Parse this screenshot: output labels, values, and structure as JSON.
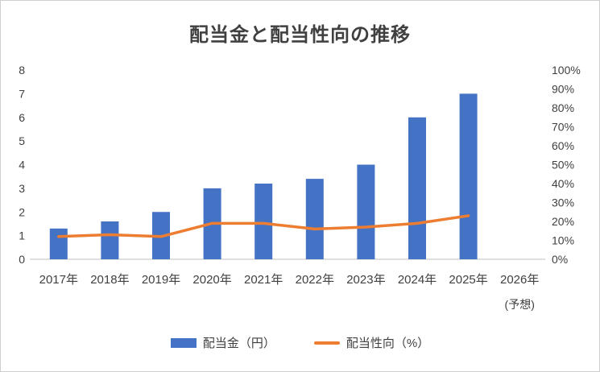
{
  "chart_data": {
    "type": "combo",
    "title": "配当金と配当性向の推移",
    "categories": [
      "2017年",
      "2018年",
      "2019年",
      "2020年",
      "2021年",
      "2022年",
      "2023年",
      "2024年",
      "2025年",
      "2026年"
    ],
    "category_note": {
      "index": 9,
      "label": "(予想)"
    },
    "series": [
      {
        "name": "配当金（円）",
        "type": "bar",
        "axis": "left",
        "color": "#4472C4",
        "values": [
          1.3,
          1.6,
          2,
          3,
          3.2,
          3.4,
          4,
          6,
          7,
          null
        ]
      },
      {
        "name": "配当性向（%）",
        "type": "line",
        "axis": "right",
        "color": "#ED7D31",
        "values": [
          12,
          13,
          12,
          19,
          19,
          16,
          17,
          19,
          23,
          null
        ]
      }
    ],
    "left_axis": {
      "min": 0,
      "max": 8,
      "step": 1,
      "ticks": [
        "0",
        "1",
        "2",
        "3",
        "4",
        "5",
        "6",
        "7",
        "8"
      ]
    },
    "right_axis": {
      "min": 0,
      "max": 100,
      "step": 10,
      "ticks": [
        "0%",
        "10%",
        "20%",
        "30%",
        "40%",
        "50%",
        "60%",
        "70%",
        "80%",
        "90%",
        "100%"
      ]
    },
    "legend_position": "bottom",
    "grid": false
  }
}
